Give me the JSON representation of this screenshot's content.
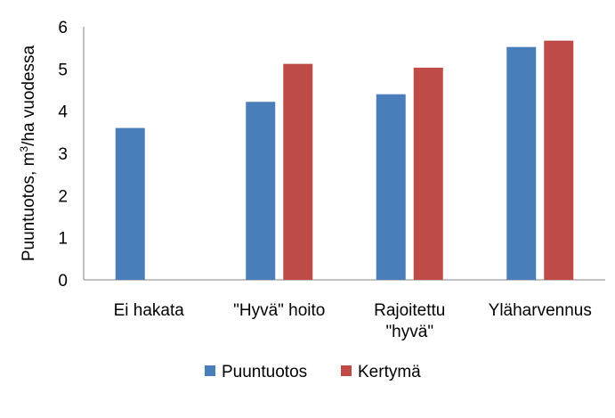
{
  "chart_data": {
    "type": "bar",
    "title": "",
    "xlabel": "",
    "ylabel": {
      "prefix": "Puuntuotos,  m",
      "sup": "3",
      "suffix": "/ha vuodessa"
    },
    "ylim": [
      0,
      6
    ],
    "yticks": [
      0,
      1,
      2,
      3,
      4,
      5,
      6
    ],
    "grid": false,
    "legend_position": "bottom",
    "categories": [
      [
        "Ei hakata"
      ],
      [
        "\"Hyvä\" hoito"
      ],
      [
        "Rajoitettu",
        "\"hyvä\""
      ],
      [
        "Yläharvennus"
      ]
    ],
    "series": [
      {
        "name": "Puuntuotos",
        "color": "#4a7ebb",
        "values": [
          3.6,
          4.22,
          4.4,
          5.52
        ]
      },
      {
        "name": "Kertymä",
        "color": "#be4b48",
        "values": [
          null,
          5.12,
          5.03,
          5.67
        ]
      }
    ]
  }
}
